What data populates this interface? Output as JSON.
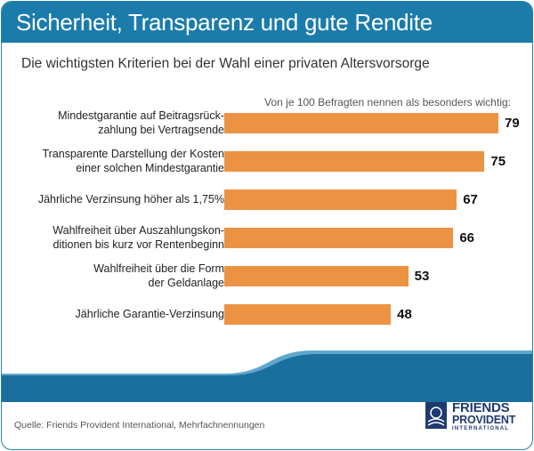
{
  "header": {
    "title": "Sicherheit, Transparenz und gute Rendite",
    "subtitle": "Die wichtigsten Kriterien bei der Wahl einer privaten Altersvorsorge"
  },
  "note": "Von je 100 Befragten nennen als besonders wichtig:",
  "source": "Quelle: Friends Provident International, Mehrfachnennungen",
  "logo": {
    "line1": "FRIENDS",
    "line2": "PROVIDENT",
    "line3": "INTERNATIONAL"
  },
  "colors": {
    "header": "#1b7bab",
    "bar": "#ec9343",
    "wave_dark": "#1b6f9c",
    "wave_light": "#5fa7cf",
    "logo": "#1e3a70"
  },
  "chart_data": {
    "type": "bar",
    "orientation": "horizontal",
    "title": "Sicherheit, Transparenz und gute Rendite",
    "subtitle": "Die wichtigsten Kriterien bei der Wahl einer privaten Altersvorsorge",
    "categories": [
      "Mindestgarantie auf Beitragsrück-\nzahlung bei Vertragsende",
      "Transparente Darstellung der Kosten\neiner solchen Mindestgarantie",
      "Jährliche Verzinsung höher als 1,75%",
      "Wahlfreiheit über Auszahlungskon-\nditionen bis kurz vor Rentenbeginn",
      "Wahlfreiheit über die Form\nder Geldanlage",
      "Jährliche Garantie-Verzinsung"
    ],
    "values": [
      79,
      75,
      67,
      66,
      53,
      48
    ],
    "xlim": [
      0,
      100
    ],
    "grid": false,
    "legend": "none"
  }
}
